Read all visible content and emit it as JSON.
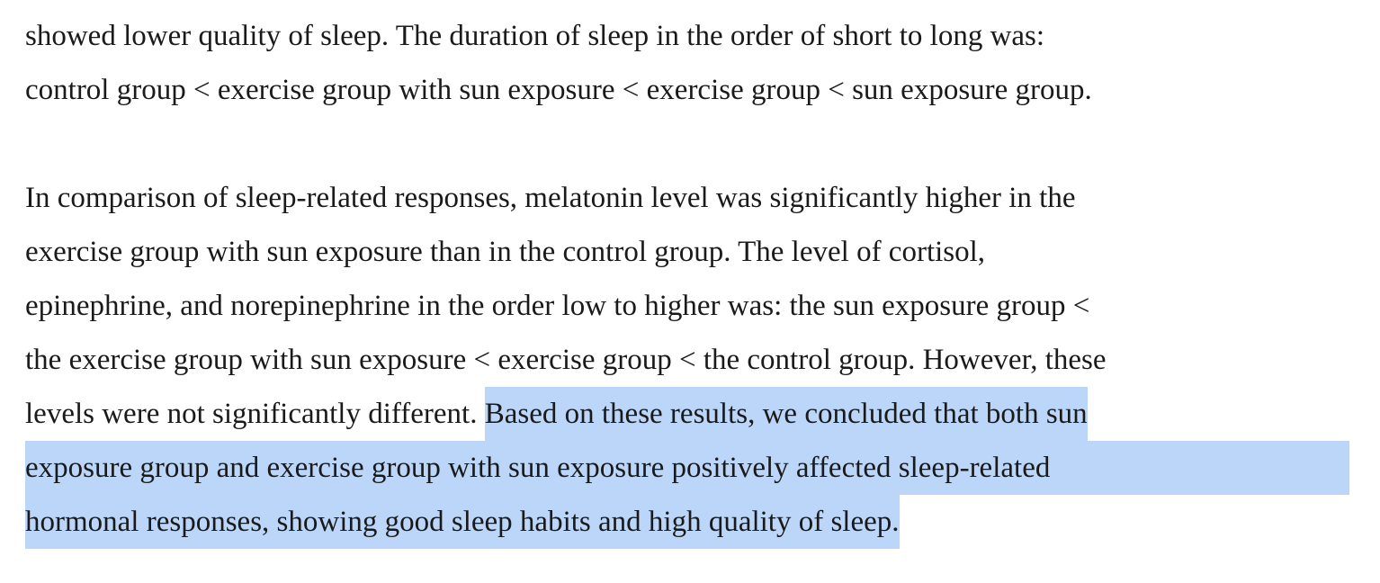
{
  "paragraph1": {
    "line1": "showed lower quality of sleep. The duration of sleep in the order of short to long was:",
    "line2": "control group < exercise group with sun exposure < exercise group < sun exposure group."
  },
  "paragraph2": {
    "line1": "In comparison of sleep-related responses, melatonin level was significantly higher in the",
    "line2": "exercise group with sun exposure than in the control group. The level of cortisol,",
    "line3": "epinephrine, and norepinephrine in the order low to higher was: the sun exposure group <",
    "line4": "the exercise group with sun exposure < exercise group < the control group. However, these",
    "line5_plain": "levels were not significantly different. ",
    "line5_selected": "Based on these results, we concluded that both sun",
    "line6_selected": "exposure group and exercise group with sun exposure positively affected sleep-related",
    "line7_selected": "hormonal responses, showing good sleep habits and high quality of sleep."
  },
  "colors": {
    "text": "#1a1a1a",
    "selection": "#bcd6fa"
  }
}
